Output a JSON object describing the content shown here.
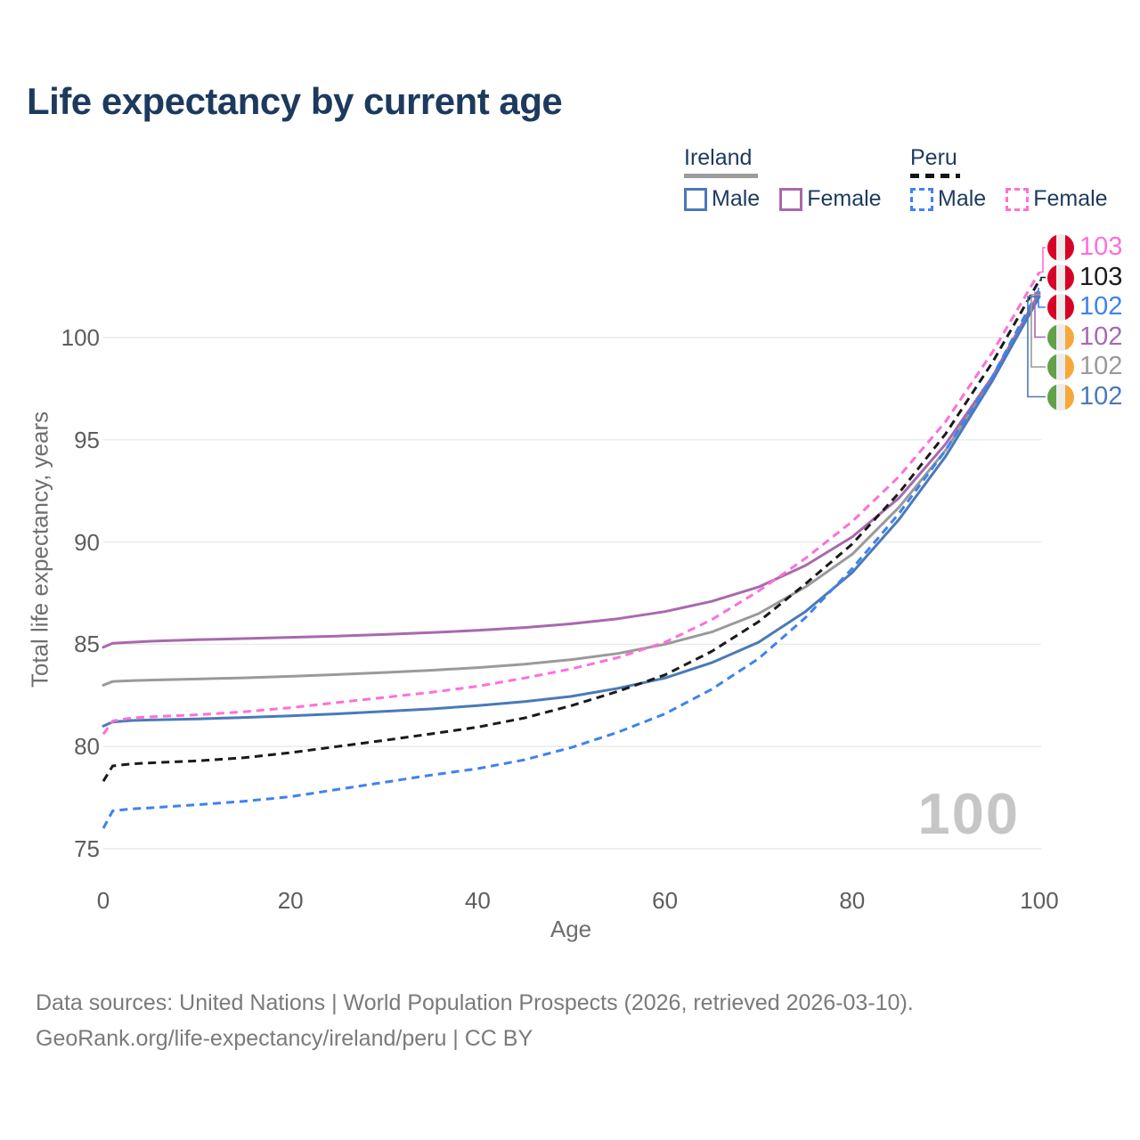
{
  "title": "Life expectancy by current age",
  "legend": {
    "groups": [
      {
        "name": "Ireland",
        "line_style": "solid",
        "items": [
          {
            "label": "Male",
            "series": "ireland_male"
          },
          {
            "label": "Female",
            "series": "ireland_female"
          }
        ]
      },
      {
        "name": "Peru",
        "line_style": "dashed",
        "items": [
          {
            "label": "Male",
            "series": "peru_male"
          },
          {
            "label": "Female",
            "series": "peru_female"
          }
        ]
      }
    ]
  },
  "chart_data": {
    "type": "line",
    "title": "Life expectancy by current age",
    "xlabel": "Age",
    "ylabel": "Total life expectancy, years",
    "xlim": [
      0,
      100
    ],
    "ylim": [
      75,
      103.5
    ],
    "xticks": [
      0,
      20,
      40,
      60,
      80,
      100
    ],
    "yticks": [
      75,
      80,
      85,
      90,
      95,
      100
    ],
    "grid": "horizontal",
    "hover_age_label": "100",
    "x": [
      0,
      1,
      3,
      5,
      10,
      15,
      20,
      25,
      30,
      35,
      40,
      45,
      50,
      55,
      60,
      65,
      70,
      75,
      80,
      85,
      90,
      95,
      100
    ],
    "series": [
      {
        "id": "ireland_total",
        "name": "Ireland",
        "country": "Ireland",
        "sex": "Both",
        "color": "#9a9a9a",
        "dash": false,
        "end_label": "102",
        "values": [
          83.0,
          83.18,
          83.22,
          83.25,
          83.3,
          83.36,
          83.43,
          83.52,
          83.62,
          83.73,
          83.86,
          84.03,
          84.25,
          84.55,
          85.0,
          85.6,
          86.5,
          87.8,
          89.4,
          91.7,
          94.5,
          98.0,
          102.1
        ]
      },
      {
        "id": "ireland_female",
        "name": "Ireland Female",
        "country": "Ireland",
        "sex": "Female",
        "color": "#a869ae",
        "dash": false,
        "end_label": "102",
        "values": [
          84.85,
          85.05,
          85.1,
          85.15,
          85.22,
          85.28,
          85.34,
          85.4,
          85.48,
          85.57,
          85.68,
          85.82,
          86.0,
          86.25,
          86.6,
          87.1,
          87.8,
          88.85,
          90.25,
          92.15,
          94.8,
          98.1,
          102.2
        ]
      },
      {
        "id": "ireland_male",
        "name": "Ireland Male",
        "country": "Ireland",
        "sex": "Male",
        "color": "#4a7ab8",
        "dash": false,
        "end_label": "102",
        "values": [
          81.0,
          81.2,
          81.27,
          81.3,
          81.35,
          81.42,
          81.5,
          81.6,
          81.72,
          81.84,
          82.0,
          82.2,
          82.45,
          82.85,
          83.35,
          84.1,
          85.1,
          86.6,
          88.5,
          91.1,
          94.2,
          97.9,
          102.0
        ]
      },
      {
        "id": "peru_total",
        "name": "Peru",
        "country": "Peru",
        "sex": "Both",
        "color": "#1a1a1a",
        "dash": true,
        "end_label": "103",
        "values": [
          78.3,
          79.05,
          79.15,
          79.2,
          79.3,
          79.45,
          79.7,
          80.0,
          80.3,
          80.62,
          80.95,
          81.4,
          82.0,
          82.7,
          83.5,
          84.65,
          86.1,
          87.95,
          89.9,
          92.4,
          95.3,
          98.8,
          102.8
        ]
      },
      {
        "id": "peru_male",
        "name": "Peru Male",
        "country": "Peru",
        "sex": "Male",
        "color": "#3e82f0",
        "dash": true,
        "end_label": "102",
        "values": [
          76.0,
          76.85,
          76.95,
          77.0,
          77.15,
          77.32,
          77.55,
          77.9,
          78.25,
          78.6,
          78.92,
          79.35,
          79.95,
          80.7,
          81.6,
          82.8,
          84.3,
          86.3,
          88.7,
          91.4,
          94.5,
          98.1,
          102.4
        ]
      },
      {
        "id": "peru_female",
        "name": "Peru Female",
        "country": "Peru",
        "sex": "Female",
        "color": "#ff6fd8",
        "dash": true,
        "end_label": "103",
        "values": [
          80.6,
          81.25,
          81.4,
          81.45,
          81.55,
          81.7,
          81.9,
          82.15,
          82.4,
          82.65,
          82.95,
          83.35,
          83.8,
          84.35,
          85.1,
          86.2,
          87.6,
          89.2,
          91.0,
          93.2,
          95.9,
          99.3,
          103.2
        ]
      }
    ],
    "end_labels": [
      {
        "value": "103",
        "series": "peru_female",
        "flag": "peru"
      },
      {
        "value": "103",
        "series": "peru_total",
        "flag": "peru"
      },
      {
        "value": "102",
        "series": "peru_male",
        "flag": "peru"
      },
      {
        "value": "102",
        "series": "ireland_female",
        "flag": "ireland"
      },
      {
        "value": "102",
        "series": "ireland_total",
        "flag": "ireland"
      },
      {
        "value": "102",
        "series": "ireland_male",
        "flag": "ireland"
      }
    ],
    "flag_colors": {
      "peru": [
        "#d80027",
        "#ececec",
        "#d80027"
      ],
      "ireland": [
        "#63a04a",
        "#ececec",
        "#f6a83b"
      ]
    }
  },
  "footer": {
    "line1": "Data sources: United Nations | World Population Prospects (2026, retrieved 2026-03-10).",
    "line2": "GeoRank.org/life-expectancy/ireland/peru | CC BY"
  }
}
